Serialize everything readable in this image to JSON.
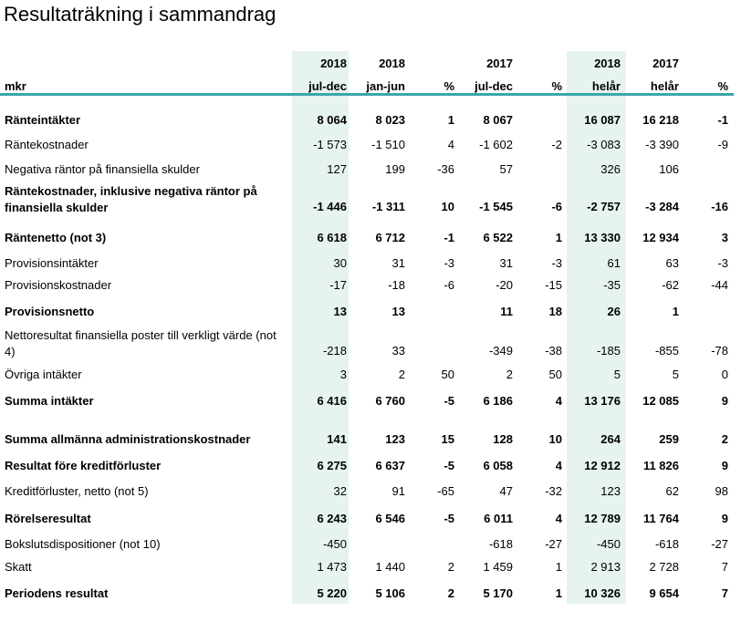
{
  "title": "Resultaträkning i sammandrag",
  "colors": {
    "accent_rule": "#3aa7a8",
    "shade": "#e6f3ef"
  },
  "header": {
    "unit": "mkr",
    "years": [
      "2018",
      "2018",
      "",
      "2017",
      "",
      "2018",
      "2017",
      ""
    ],
    "periods": [
      "jul-dec",
      "jan-jun",
      "%",
      "jul-dec",
      "%",
      "helår",
      "helår",
      "%"
    ]
  },
  "rows": [
    {
      "label": "Ränteintäkter",
      "bold": true,
      "values": [
        "8 064",
        "8 023",
        "1",
        "8 067",
        "",
        "16 087",
        "16 218",
        "-1"
      ]
    },
    {
      "label": "Räntekostnader",
      "bold": false,
      "values": [
        "-1 573",
        "-1 510",
        "4",
        "-1 602",
        "-2",
        "-3 083",
        "-3 390",
        "-9"
      ]
    },
    {
      "label": "Negativa räntor på finansiella skulder",
      "bold": false,
      "values": [
        "127",
        "199",
        "-36",
        "57",
        "",
        "326",
        "106",
        ""
      ]
    },
    {
      "label": "Räntekostnader, inklusive negativa räntor på finansiella skulder",
      "bold": true,
      "values": [
        "-1 446",
        "-1 311",
        "10",
        "-1 545",
        "-6",
        "-2 757",
        "-3 284",
        "-16"
      ]
    },
    {
      "label": "Räntenetto (not 3)",
      "bold": true,
      "values": [
        "6 618",
        "6 712",
        "-1",
        "6 522",
        "1",
        "13 330",
        "12 934",
        "3"
      ]
    },
    {
      "label": "Provisionsintäkter",
      "bold": false,
      "values": [
        "30",
        "31",
        "-3",
        "31",
        "-3",
        "61",
        "63",
        "-3"
      ]
    },
    {
      "label": "Provisionskostnader",
      "bold": false,
      "values": [
        "-17",
        "-18",
        "-6",
        "-20",
        "-15",
        "-35",
        "-62",
        "-44"
      ]
    },
    {
      "label": "Provisionsnetto",
      "bold": true,
      "values": [
        "13",
        "13",
        "",
        "11",
        "18",
        "26",
        "1",
        ""
      ]
    },
    {
      "label": "Nettoresultat finansiella poster till verkligt värde (not 4)",
      "bold": false,
      "values": [
        "-218",
        "33",
        "",
        "-349",
        "-38",
        "-185",
        "-855",
        "-78"
      ]
    },
    {
      "label": "Övriga intäkter",
      "bold": false,
      "values": [
        "3",
        "2",
        "50",
        "2",
        "50",
        "5",
        "5",
        "0"
      ]
    },
    {
      "label": "Summa intäkter",
      "bold": true,
      "values": [
        "6 416",
        "6 760",
        "-5",
        "6 186",
        "4",
        "13 176",
        "12 085",
        "9"
      ]
    },
    {
      "label": "Summa allmänna administrationskostnader",
      "bold": true,
      "values": [
        "141",
        "123",
        "15",
        "128",
        "10",
        "264",
        "259",
        "2"
      ]
    },
    {
      "label": "Resultat före kreditförluster",
      "bold": true,
      "values": [
        "6 275",
        "6 637",
        "-5",
        "6 058",
        "4",
        "12 912",
        "11 826",
        "9"
      ]
    },
    {
      "label": "Kreditförluster, netto (not 5)",
      "bold": false,
      "values": [
        "32",
        "91",
        "-65",
        "47",
        "-32",
        "123",
        "62",
        "98"
      ]
    },
    {
      "label": "Rörelseresultat",
      "bold": true,
      "values": [
        "6 243",
        "6 546",
        "-5",
        "6 011",
        "4",
        "12 789",
        "11 764",
        "9"
      ]
    },
    {
      "label": "Bokslutsdispositioner (not 10)",
      "bold": false,
      "values": [
        "-450",
        "",
        "",
        "-618",
        "-27",
        "-450",
        "-618",
        "-27"
      ]
    },
    {
      "label": "Skatt",
      "bold": false,
      "values": [
        "1 473",
        "1 440",
        "2",
        "1 459",
        "1",
        "2 913",
        "2 728",
        "7"
      ]
    },
    {
      "label": "Periodens resultat",
      "bold": true,
      "values": [
        "5 220",
        "5 106",
        "2",
        "5 170",
        "1",
        "10 326",
        "9 654",
        "7"
      ]
    }
  ]
}
